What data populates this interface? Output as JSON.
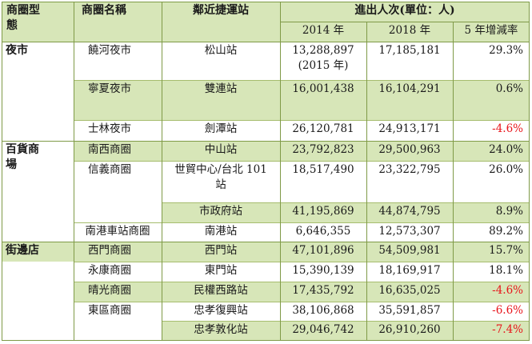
{
  "header": {
    "type": "商圈型態",
    "name": "商圈名稱",
    "station": "鄰近捷運站",
    "traffic": "進出人次(單位：人)",
    "y2014": "2014 年",
    "y2018": "2018 年",
    "change": "5 年增減率"
  },
  "rows": [
    {
      "cat": "夜市",
      "name": "饒河夜市",
      "station": "松山站",
      "v2014": "13,288,897",
      "v2014_note": "(2015 年)",
      "v2018": "17,185,181",
      "rate": "29.3%"
    },
    {
      "cat": "",
      "name": "寧夏夜市",
      "station": "雙連站",
      "v2014": "16,001,438",
      "v2018": "16,104,291",
      "rate": "0.6%"
    },
    {
      "cat": "",
      "name": "士林夜市",
      "station": "劍潭站",
      "v2014": "26,120,781",
      "v2018": "24,913,171",
      "rate": "-4.6%"
    },
    {
      "cat": "百貨商場",
      "name": "南西商圈",
      "station": "中山站",
      "v2014": "23,792,823",
      "v2018": "29,500,963",
      "rate": "24.0%"
    },
    {
      "cat": "",
      "name": "信義商圈",
      "station": "世貿中心/台北 101 站",
      "v2014": "18,517,490",
      "v2018": "23,322,795",
      "rate": "26.0%"
    },
    {
      "cat": "",
      "name": "",
      "station": "市政府站",
      "v2014": "41,195,869",
      "v2018": "44,874,795",
      "rate": "8.9%"
    },
    {
      "cat": "",
      "name": "南港車站商圈",
      "station": "南港站",
      "v2014": "6,646,355",
      "v2018": "12,573,307",
      "rate": "89.2%"
    },
    {
      "cat": "街邊店",
      "name": "西門商圈",
      "station": "西門站",
      "v2014": "47,101,896",
      "v2018": "54,509,981",
      "rate": "15.7%"
    },
    {
      "cat": "",
      "name": "永康商圈",
      "station": "東門站",
      "v2014": "15,390,139",
      "v2018": "18,169,917",
      "rate": "18.1%"
    },
    {
      "cat": "",
      "name": "晴光商圈",
      "station": "民權西路站",
      "v2014": "17,435,792",
      "v2018": "16,635,025",
      "rate": "-4.6%"
    },
    {
      "cat": "",
      "name": "東區商圈",
      "station": "忠孝復興站",
      "v2014": "38,106,868",
      "v2018": "35,591,857",
      "rate": "-6.6%"
    },
    {
      "cat": "",
      "name": "",
      "station": "忠孝敦化站",
      "v2014": "29,046,742",
      "v2018": "26,910,260",
      "rate": "-7.4%"
    }
  ]
}
